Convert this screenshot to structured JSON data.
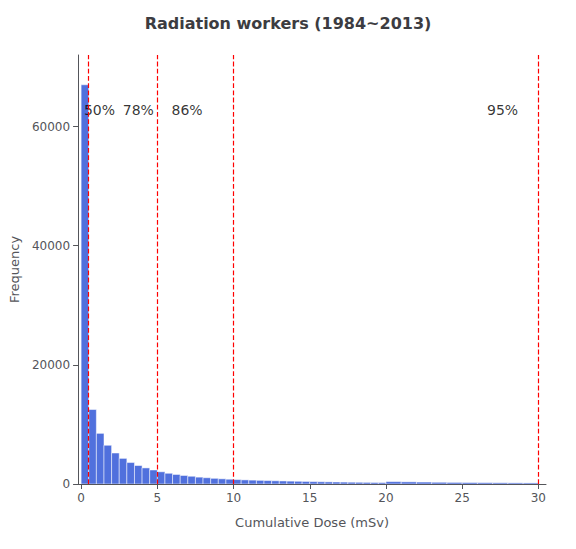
{
  "chart_data": {
    "type": "histogram",
    "title": "Radiation workers (1984~2013)",
    "xlabel": "Cumulative Dose (mSv)",
    "ylabel": "Frequency",
    "xlim": [
      -0.2,
      30.5
    ],
    "ylim": [
      0,
      72000
    ],
    "xticks": [
      0,
      5,
      10,
      15,
      20,
      25,
      30
    ],
    "yticks": [
      0,
      20000,
      40000,
      60000
    ],
    "grid": false,
    "bins": [
      0.0,
      0.5,
      1.0,
      1.5,
      2.0,
      2.5,
      3.0,
      3.5,
      4.0,
      4.5,
      5.0,
      5.5,
      6.0,
      6.5,
      7.0,
      7.5,
      8.0,
      8.5,
      9.0,
      9.5,
      10.0,
      10.5,
      11.0,
      11.5,
      12.0,
      12.5,
      13.0,
      13.5,
      14.0,
      14.5,
      15.0,
      15.5,
      16.0,
      16.5,
      17.0,
      17.5,
      18.0,
      18.5,
      19.0,
      19.5,
      20.0,
      21.0,
      22.0,
      23.0,
      24.0,
      25.0,
      26.0,
      27.0,
      28.0,
      29.0,
      30.0
    ],
    "values": [
      67000,
      12500,
      8500,
      6500,
      5200,
      4300,
      3600,
      3100,
      2700,
      2350,
      2050,
      1800,
      1600,
      1430,
      1300,
      1150,
      1050,
      950,
      870,
      800,
      740,
      690,
      650,
      610,
      575,
      540,
      510,
      480,
      455,
      430,
      400,
      375,
      355,
      335,
      320,
      300,
      285,
      270,
      255,
      240,
      400,
      360,
      325,
      290,
      265,
      245,
      225,
      205,
      190,
      180
    ],
    "vlines": {
      "values": [
        0.5,
        5.0,
        10.0,
        30.0
      ],
      "color": "red",
      "line_style": "dashed"
    },
    "annotations": [
      {
        "text": "50%",
        "x": 0.05,
        "y": 64000
      },
      {
        "text": "78%",
        "x": 2.6,
        "y": 64000
      },
      {
        "text": "86%",
        "x": 5.8,
        "y": 64000
      },
      {
        "text": "95%",
        "x": 26.5,
        "y": 64000
      }
    ]
  }
}
